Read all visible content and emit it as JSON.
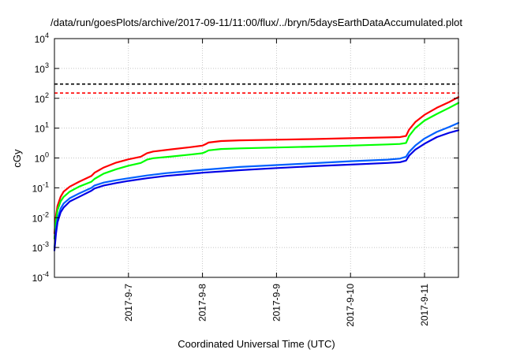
{
  "chart_data": {
    "type": "line",
    "title": "/data/run/goesPlots/archive/2017-09-11/11:00/flux/../bryn/5daysEarthDataAccumulated.plot",
    "xlabel": "Coordinated Universal Time (UTC)",
    "ylabel": "cGy",
    "yscale": "log",
    "ylim": [
      0.0001,
      10000
    ],
    "xlim": [
      "2017-09-06 00:00",
      "2017-09-11 11:00"
    ],
    "grid": true,
    "legend": "none",
    "y_ticks": [
      {
        "base": "10",
        "exp": "-4"
      },
      {
        "base": "10",
        "exp": "-3"
      },
      {
        "base": "10",
        "exp": "-2"
      },
      {
        "base": "10",
        "exp": "-1"
      },
      {
        "base": "10",
        "exp": "0"
      },
      {
        "base": "10",
        "exp": "1"
      },
      {
        "base": "10",
        "exp": "2"
      },
      {
        "base": "10",
        "exp": "3"
      },
      {
        "base": "10",
        "exp": "4"
      }
    ],
    "x_ticks": [
      "2017-9-7",
      "2017-9-8",
      "2017-9-9",
      "2017-9-10",
      "2017-9-11"
    ],
    "thresholds": [
      {
        "value": 300,
        "color": "#000000",
        "style": "dashed"
      },
      {
        "value": 150,
        "color": "#ff0000",
        "style": "dashed"
      }
    ],
    "series": [
      {
        "color": "#ff0000",
        "points": [
          [
            "2017-09-06 00:00",
            0.003
          ],
          [
            "2017-09-06 00:30",
            0.012
          ],
          [
            "2017-09-06 01:00",
            0.025
          ],
          [
            "2017-09-06 02:00",
            0.05
          ],
          [
            "2017-09-06 03:00",
            0.075
          ],
          [
            "2017-09-06 05:00",
            0.11
          ],
          [
            "2017-09-06 08:00",
            0.16
          ],
          [
            "2017-09-06 12:00",
            0.25
          ],
          [
            "2017-09-06 13:00",
            0.32
          ],
          [
            "2017-09-06 16:00",
            0.48
          ],
          [
            "2017-09-06 20:00",
            0.7
          ],
          [
            "2017-09-07 00:00",
            0.9
          ],
          [
            "2017-09-07 04:00",
            1.1
          ],
          [
            "2017-09-07 06:00",
            1.45
          ],
          [
            "2017-09-07 08:00",
            1.65
          ],
          [
            "2017-09-07 14:00",
            1.95
          ],
          [
            "2017-09-07 20:00",
            2.3
          ],
          [
            "2017-09-08 00:00",
            2.6
          ],
          [
            "2017-09-08 01:00",
            2.9
          ],
          [
            "2017-09-08 02:00",
            3.3
          ],
          [
            "2017-09-08 06:00",
            3.7
          ],
          [
            "2017-09-08 12:00",
            3.9
          ],
          [
            "2017-09-09 00:00",
            4.1
          ],
          [
            "2017-09-09 12:00",
            4.3
          ],
          [
            "2017-09-10 00:00",
            4.6
          ],
          [
            "2017-09-10 12:00",
            4.9
          ],
          [
            "2017-09-10 16:00",
            5.0
          ],
          [
            "2017-09-10 18:00",
            5.5
          ],
          [
            "2017-09-10 19:00",
            9.0
          ],
          [
            "2017-09-10 21:00",
            16
          ],
          [
            "2017-09-11 00:00",
            28
          ],
          [
            "2017-09-11 04:00",
            48
          ],
          [
            "2017-09-11 08:00",
            75
          ],
          [
            "2017-09-11 11:00",
            110
          ]
        ]
      },
      {
        "color": "#00ff00",
        "points": [
          [
            "2017-09-06 00:00",
            0.002
          ],
          [
            "2017-09-06 00:30",
            0.008
          ],
          [
            "2017-09-06 01:00",
            0.018
          ],
          [
            "2017-09-06 02:00",
            0.035
          ],
          [
            "2017-09-06 03:00",
            0.05
          ],
          [
            "2017-09-06 05:00",
            0.075
          ],
          [
            "2017-09-06 08:00",
            0.11
          ],
          [
            "2017-09-06 12:00",
            0.16
          ],
          [
            "2017-09-06 13:00",
            0.2
          ],
          [
            "2017-09-06 16:00",
            0.3
          ],
          [
            "2017-09-06 20:00",
            0.42
          ],
          [
            "2017-09-07 00:00",
            0.55
          ],
          [
            "2017-09-07 04:00",
            0.68
          ],
          [
            "2017-09-07 06:00",
            0.88
          ],
          [
            "2017-09-07 08:00",
            0.98
          ],
          [
            "2017-09-07 14:00",
            1.12
          ],
          [
            "2017-09-07 20:00",
            1.3
          ],
          [
            "2017-09-08 00:00",
            1.45
          ],
          [
            "2017-09-08 01:00",
            1.6
          ],
          [
            "2017-09-08 02:00",
            1.8
          ],
          [
            "2017-09-08 06:00",
            2.0
          ],
          [
            "2017-09-08 12:00",
            2.1
          ],
          [
            "2017-09-09 00:00",
            2.25
          ],
          [
            "2017-09-09 12:00",
            2.4
          ],
          [
            "2017-09-10 00:00",
            2.6
          ],
          [
            "2017-09-10 12:00",
            2.85
          ],
          [
            "2017-09-10 16:00",
            2.95
          ],
          [
            "2017-09-10 18:00",
            3.2
          ],
          [
            "2017-09-10 19:00",
            5.5
          ],
          [
            "2017-09-10 21:00",
            10
          ],
          [
            "2017-09-11 00:00",
            18
          ],
          [
            "2017-09-11 04:00",
            30
          ],
          [
            "2017-09-11 08:00",
            48
          ],
          [
            "2017-09-11 11:00",
            70
          ]
        ]
      },
      {
        "color": "#0060ff",
        "points": [
          [
            "2017-09-06 00:00",
            0.001
          ],
          [
            "2017-09-06 00:30",
            0.004
          ],
          [
            "2017-09-06 01:00",
            0.009
          ],
          [
            "2017-09-06 02:00",
            0.02
          ],
          [
            "2017-09-06 03:00",
            0.03
          ],
          [
            "2017-09-06 05:00",
            0.045
          ],
          [
            "2017-09-06 08:00",
            0.065
          ],
          [
            "2017-09-06 12:00",
            0.1
          ],
          [
            "2017-09-06 13:00",
            0.12
          ],
          [
            "2017-09-06 16:00",
            0.15
          ],
          [
            "2017-09-06 20:00",
            0.18
          ],
          [
            "2017-09-07 00:00",
            0.21
          ],
          [
            "2017-09-07 06:00",
            0.26
          ],
          [
            "2017-09-07 12:00",
            0.31
          ],
          [
            "2017-09-08 00:00",
            0.4
          ],
          [
            "2017-09-08 12:00",
            0.5
          ],
          [
            "2017-09-09 00:00",
            0.58
          ],
          [
            "2017-09-09 12:00",
            0.67
          ],
          [
            "2017-09-10 00:00",
            0.78
          ],
          [
            "2017-09-10 12:00",
            0.88
          ],
          [
            "2017-09-10 16:00",
            0.95
          ],
          [
            "2017-09-10 18:00",
            1.1
          ],
          [
            "2017-09-10 19:00",
            1.6
          ],
          [
            "2017-09-10 21:00",
            2.6
          ],
          [
            "2017-09-11 00:00",
            4.5
          ],
          [
            "2017-09-11 04:00",
            7.5
          ],
          [
            "2017-09-11 08:00",
            11
          ],
          [
            "2017-09-11 11:00",
            15
          ]
        ]
      },
      {
        "color": "#0000e6",
        "points": [
          [
            "2017-09-06 00:00",
            0.0008
          ],
          [
            "2017-09-06 00:30",
            0.003
          ],
          [
            "2017-09-06 01:00",
            0.007
          ],
          [
            "2017-09-06 02:00",
            0.015
          ],
          [
            "2017-09-06 03:00",
            0.022
          ],
          [
            "2017-09-06 05:00",
            0.035
          ],
          [
            "2017-09-06 08:00",
            0.05
          ],
          [
            "2017-09-06 12:00",
            0.08
          ],
          [
            "2017-09-06 13:00",
            0.095
          ],
          [
            "2017-09-06 16:00",
            0.12
          ],
          [
            "2017-09-06 20:00",
            0.145
          ],
          [
            "2017-09-07 00:00",
            0.17
          ],
          [
            "2017-09-07 06:00",
            0.21
          ],
          [
            "2017-09-07 12:00",
            0.25
          ],
          [
            "2017-09-08 00:00",
            0.32
          ],
          [
            "2017-09-08 12:00",
            0.39
          ],
          [
            "2017-09-09 00:00",
            0.46
          ],
          [
            "2017-09-09 12:00",
            0.53
          ],
          [
            "2017-09-10 00:00",
            0.6
          ],
          [
            "2017-09-10 12:00",
            0.68
          ],
          [
            "2017-09-10 16:00",
            0.72
          ],
          [
            "2017-09-10 18:00",
            0.82
          ],
          [
            "2017-09-10 19:00",
            1.2
          ],
          [
            "2017-09-10 21:00",
            1.9
          ],
          [
            "2017-09-11 00:00",
            3.0
          ],
          [
            "2017-09-11 04:00",
            5.0
          ],
          [
            "2017-09-11 08:00",
            7.0
          ],
          [
            "2017-09-11 11:00",
            8.5
          ]
        ]
      }
    ]
  }
}
